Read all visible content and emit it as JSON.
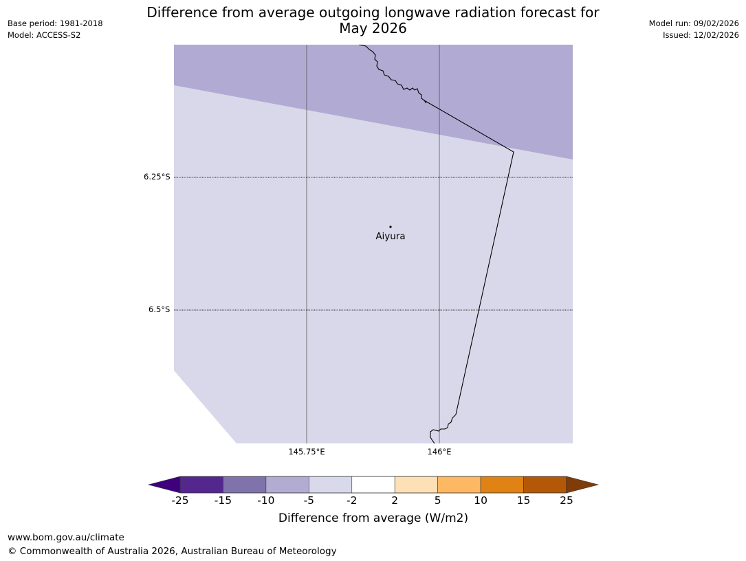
{
  "title_line1": "Difference from average outgoing longwave radiation forecast for",
  "title_line2": "May 2026",
  "meta": {
    "base_period": "Base period: 1981-2018",
    "model": "Model: ACCESS-S2",
    "model_run": "Model run: 09/02/2026",
    "issued": "Issued: 12/02/2026"
  },
  "map": {
    "lat_labels": [
      "6.25°S",
      "6.5°S"
    ],
    "lon_labels": [
      "145.75°E",
      "146°E"
    ],
    "place": "Aiyura",
    "colors": {
      "upper_band": "#b1aad2",
      "main_band": "#d8d8ea",
      "coast": "#000000",
      "grid": "#555555"
    }
  },
  "colorbar": {
    "title": "Difference from average (W/m2)",
    "tick_labels": [
      "-25",
      "-15",
      "-10",
      "-5",
      "-2",
      "2",
      "5",
      "10",
      "15",
      "25"
    ],
    "colors": [
      "#3f007d",
      "#54278f",
      "#8073ac",
      "#b2abd2",
      "#d8daeb",
      "#ffffff",
      "#fee0b6",
      "#fdb863",
      "#e08214",
      "#b35806",
      "#7f3b08"
    ]
  },
  "footer": {
    "url": "www.bom.gov.au/climate",
    "copyright": "© Commonwealth of Australia 2026, Australian Bureau of Meteorology"
  }
}
